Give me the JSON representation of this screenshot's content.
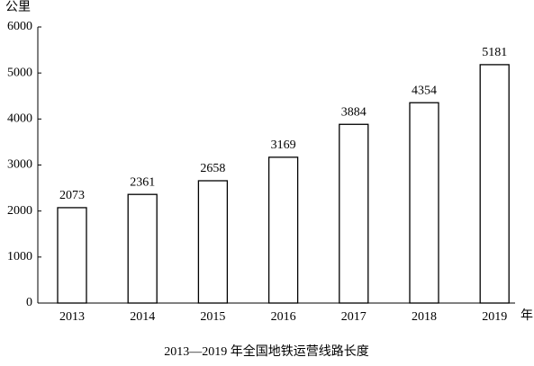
{
  "chart_data": {
    "type": "bar",
    "title": "2013—2019 年全国地铁运营线路长度",
    "y_label": "公里",
    "x_label": "年",
    "categories": [
      "2013",
      "2014",
      "2015",
      "2016",
      "2017",
      "2018",
      "2019"
    ],
    "values": [
      2073,
      2361,
      2658,
      3169,
      3884,
      4354,
      5181
    ],
    "color": "#ffffff",
    "edge_color": "#000000",
    "ylim": [
      0,
      6000
    ],
    "yticks": [
      0,
      1000,
      2000,
      3000,
      4000,
      5000,
      6000
    ],
    "grid": false
  }
}
